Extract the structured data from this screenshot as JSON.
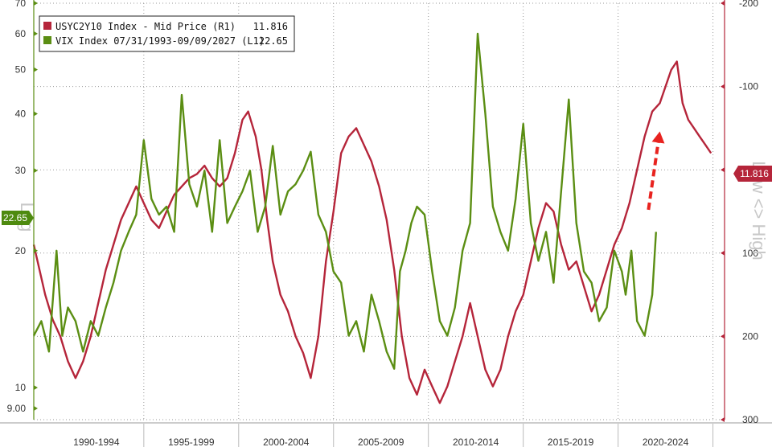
{
  "chart_data": {
    "type": "line",
    "legend": {
      "placement": "top-left",
      "entries": [
        {
          "series": "usyc2y10",
          "label": "USYC2Y10 Index - Mid Price (R1)",
          "value": "11.816"
        },
        {
          "series": "vix",
          "label": "VIX Index 07/31/1993-09/09/2027 (L1)",
          "value": "22.65"
        }
      ]
    },
    "x_period_labels": [
      "1990-1994",
      "1995-1999",
      "2000-2004",
      "2005-2009",
      "2010-2014",
      "2015-2019",
      "2020-2024"
    ],
    "y_left": {
      "title": "Log",
      "scale": "log",
      "range": [
        8.5,
        70
      ],
      "ticks": [
        9,
        10,
        20,
        30,
        40,
        50,
        60,
        70
      ],
      "tick_labels": [
        "9.00",
        "10",
        "20",
        "30",
        "40",
        "50",
        "60",
        "70"
      ]
    },
    "y_right": {
      "title": "Low <> High",
      "scale": "linear",
      "inverted": true,
      "range": [
        -200,
        300
      ],
      "ticks": [
        -200,
        -100,
        0,
        100,
        200,
        300
      ],
      "tick_labels": [
        "-200",
        "-100",
        "0",
        "100",
        "200",
        "300"
      ]
    },
    "gridlines": true,
    "current_value_badges": {
      "left": "22.65",
      "right": "11.816"
    },
    "annotation": {
      "type": "dashed-arrow",
      "color": "#e8231f",
      "from": {
        "x": 2021.4,
        "y_right": 48
      },
      "to": {
        "x": 2022.0,
        "y_right": -46
      }
    },
    "series": [
      {
        "id": "usyc2y10",
        "axis": "right",
        "color": "#b5253a",
        "x": [
          1989.0,
          1989.3,
          1989.6,
          1990.0,
          1990.4,
          1990.8,
          1991.2,
          1991.6,
          1992.0,
          1992.4,
          1992.8,
          1993.2,
          1993.6,
          1994.0,
          1994.4,
          1994.8,
          1995.2,
          1995.6,
          1996.0,
          1996.4,
          1996.8,
          1997.2,
          1997.6,
          1998.0,
          1998.4,
          1998.8,
          1999.2,
          1999.6,
          2000.0,
          2000.3,
          2000.7,
          2001.0,
          2001.3,
          2001.6,
          2002.0,
          2002.4,
          2002.8,
          2003.2,
          2003.6,
          2004.0,
          2004.4,
          2004.8,
          2005.2,
          2005.6,
          2006.0,
          2006.4,
          2006.8,
          2007.2,
          2007.6,
          2008.0,
          2008.4,
          2008.8,
          2009.2,
          2009.6,
          2010.0,
          2010.4,
          2010.8,
          2011.2,
          2011.6,
          2012.0,
          2012.4,
          2012.8,
          2013.2,
          2013.6,
          2014.0,
          2014.4,
          2014.8,
          2015.2,
          2015.6,
          2016.0,
          2016.4,
          2016.8,
          2017.2,
          2017.6,
          2018.0,
          2018.4,
          2018.8,
          2019.2,
          2019.6,
          2020.0,
          2020.4,
          2020.8,
          2021.2,
          2021.6,
          2022.0,
          2022.3,
          2022.6,
          2022.9,
          2023.2,
          2023.5,
          2023.8,
          2024.1,
          2024.4,
          2024.7
        ],
        "values": [
          90,
          120,
          150,
          180,
          200,
          230,
          250,
          230,
          200,
          160,
          120,
          90,
          60,
          40,
          20,
          40,
          60,
          70,
          50,
          30,
          20,
          10,
          5,
          -5,
          10,
          20,
          10,
          -20,
          -60,
          -70,
          -40,
          0,
          60,
          110,
          150,
          170,
          200,
          220,
          250,
          200,
          110,
          50,
          -20,
          -40,
          -50,
          -30,
          -10,
          20,
          60,
          120,
          200,
          250,
          270,
          240,
          260,
          280,
          260,
          230,
          200,
          160,
          200,
          240,
          260,
          240,
          200,
          170,
          150,
          110,
          70,
          40,
          50,
          90,
          120,
          110,
          140,
          170,
          150,
          120,
          90,
          70,
          40,
          0,
          -40,
          -70,
          -80,
          -100,
          -120,
          -130,
          -80,
          -60,
          -50,
          -40,
          -30,
          -20
        ]
      },
      {
        "id": "vix",
        "axis": "left",
        "color": "#5b8e13",
        "x": [
          1989.0,
          1989.4,
          1989.8,
          1990.2,
          1990.5,
          1990.8,
          1991.2,
          1991.6,
          1992.0,
          1992.4,
          1992.8,
          1993.2,
          1993.6,
          1994.0,
          1994.4,
          1994.8,
          1995.2,
          1995.6,
          1996.0,
          1996.4,
          1996.8,
          1997.2,
          1997.6,
          1998.0,
          1998.4,
          1998.8,
          1999.2,
          1999.6,
          2000.0,
          2000.4,
          2000.8,
          2001.2,
          2001.6,
          2002.0,
          2002.4,
          2002.8,
          2003.2,
          2003.6,
          2004.0,
          2004.4,
          2004.8,
          2005.2,
          2005.6,
          2006.0,
          2006.4,
          2006.8,
          2007.2,
          2007.6,
          2008.0,
          2008.3,
          2008.6,
          2008.9,
          2009.2,
          2009.6,
          2010.0,
          2010.4,
          2010.8,
          2011.2,
          2011.6,
          2012.0,
          2012.4,
          2012.8,
          2013.2,
          2013.6,
          2014.0,
          2014.4,
          2014.8,
          2015.2,
          2015.6,
          2016.0,
          2016.4,
          2016.8,
          2017.2,
          2017.6,
          2018.0,
          2018.4,
          2018.8,
          2019.2,
          2019.6,
          2020.0,
          2020.2,
          2020.5,
          2020.8,
          2021.2,
          2021.6,
          2021.8
        ],
        "values": [
          13,
          14,
          12,
          20,
          13,
          15,
          14,
          12,
          14,
          13,
          15,
          17,
          20,
          22,
          24,
          35,
          26,
          24,
          25,
          22,
          44,
          28,
          25,
          30,
          22,
          35,
          23,
          25,
          27,
          30,
          22,
          25,
          34,
          24,
          27,
          28,
          30,
          33,
          24,
          22,
          18,
          17,
          13,
          14,
          12,
          16,
          14,
          12,
          11,
          18,
          20,
          23,
          25,
          24,
          18,
          14,
          13,
          15,
          20,
          23,
          60,
          40,
          25,
          22,
          20,
          26,
          38,
          23,
          19,
          22,
          17,
          27,
          43,
          23,
          18,
          17,
          14,
          15,
          20,
          18,
          16,
          20,
          14,
          13,
          16,
          22
        ]
      }
    ]
  }
}
